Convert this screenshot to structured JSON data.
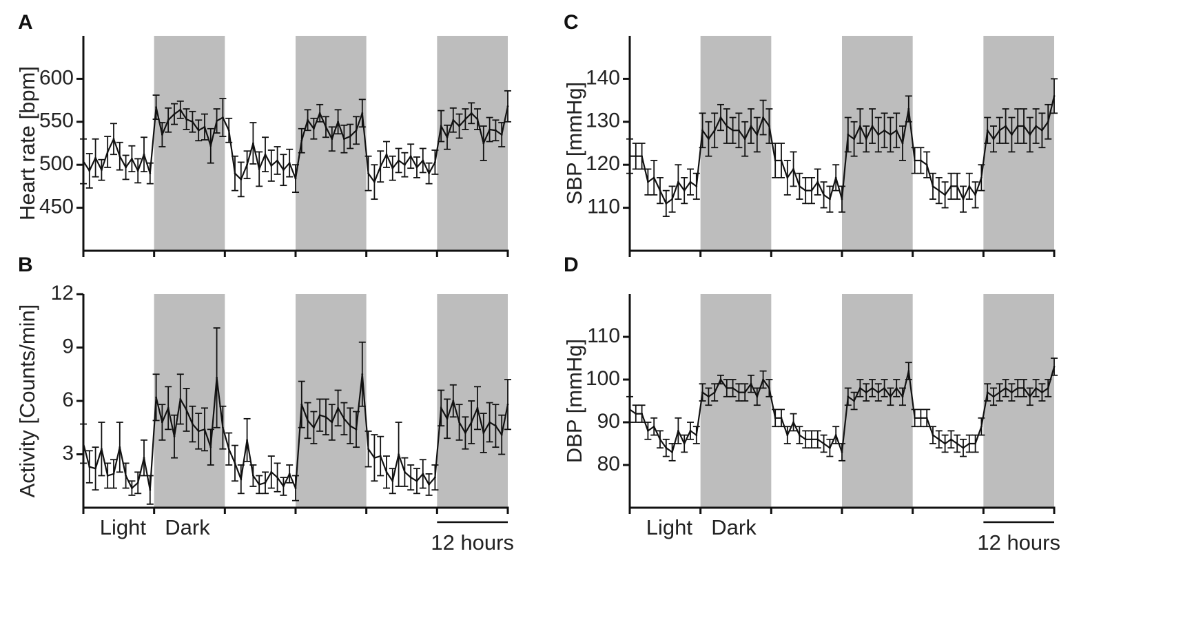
{
  "chart_data": [
    {
      "panel": "A",
      "type": "line",
      "ylabel": "Heart rate [bpm]",
      "yticks": [
        450,
        500,
        550,
        600
      ],
      "ylim": [
        400,
        650
      ],
      "x_unit": "hours",
      "xlim": [
        0,
        72
      ],
      "xtick_hours": [
        0,
        12,
        24,
        36,
        48,
        60,
        72
      ],
      "dark_periods": [
        [
          12,
          24
        ],
        [
          36,
          48
        ],
        [
          60,
          72
        ]
      ],
      "period_labels": {
        "light": "Light",
        "dark": "Dark"
      },
      "scale_bar": {
        "from": 60,
        "to": 72,
        "label": "12 hours"
      },
      "series": [
        {
          "name": "Heart rate",
          "values": [
            504,
            493,
            508,
            494,
            515,
            530,
            510,
            497,
            507,
            493,
            512,
            490,
            567,
            535,
            552,
            559,
            564,
            553,
            550,
            540,
            544,
            522,
            551,
            555,
            540,
            490,
            483,
            500,
            525,
            495,
            512,
            499,
            505,
            494,
            502,
            484,
            528,
            552,
            542,
            560,
            544,
            530,
            550,
            530,
            533,
            540,
            560,
            490,
            480,
            498,
            512,
            496,
            505,
            500,
            510,
            497,
            505,
            490,
            503,
            545,
            532,
            552,
            545,
            553,
            560,
            553,
            525,
            541,
            540,
            535,
            568
          ],
          "errors": [
            26,
            20,
            22,
            12,
            18,
            18,
            16,
            14,
            15,
            14,
            20,
            12,
            14,
            14,
            14,
            12,
            10,
            12,
            12,
            12,
            15,
            20,
            14,
            22,
            14,
            20,
            20,
            16,
            24,
            20,
            20,
            18,
            16,
            18,
            16,
            16,
            14,
            12,
            12,
            10,
            12,
            14,
            14,
            16,
            14,
            16,
            16,
            20,
            20,
            18,
            15,
            14,
            14,
            14,
            14,
            12,
            14,
            12,
            14,
            18,
            14,
            14,
            14,
            12,
            12,
            12,
            20,
            14,
            12,
            14,
            18
          ]
        }
      ]
    },
    {
      "panel": "B",
      "type": "line",
      "ylabel": "Activity [Counts/min]",
      "yticks": [
        3,
        6,
        9,
        12
      ],
      "ylim": [
        0,
        12
      ],
      "x_unit": "hours",
      "xlim": [
        0,
        72
      ],
      "xtick_hours": [
        0,
        12,
        24,
        36,
        48,
        60,
        72
      ],
      "dark_periods": [
        [
          12,
          24
        ],
        [
          36,
          48
        ],
        [
          60,
          72
        ]
      ],
      "period_labels": {
        "light": "Light",
        "dark": "Dark"
      },
      "scale_bar": {
        "from": 60,
        "to": 72,
        "label": "12 hours"
      },
      "series": [
        {
          "name": "Activity",
          "values": [
            3.6,
            2.3,
            2.2,
            3.3,
            1.8,
            1.9,
            3.4,
            1.8,
            1.1,
            1.4,
            2.8,
            1.0,
            6.2,
            4.8,
            5.6,
            4.0,
            6.1,
            5.5,
            4.7,
            4.3,
            4.4,
            3.4,
            7.3,
            4.5,
            3.3,
            2.5,
            1.6,
            3.8,
            1.8,
            1.3,
            1.4,
            2.0,
            1.7,
            1.2,
            1.9,
            1.1,
            5.8,
            4.9,
            4.5,
            5.2,
            5.1,
            4.8,
            5.6,
            5.0,
            4.6,
            4.4,
            7.5,
            3.3,
            2.8,
            2.9,
            2.0,
            1.5,
            3.0,
            2.0,
            1.7,
            1.5,
            1.9,
            1.3,
            1.7,
            5.6,
            5.0,
            6.0,
            4.8,
            4.2,
            4.8,
            5.6,
            4.2,
            4.8,
            4.6,
            4.1,
            5.8
          ],
          "errors": [
            1.1,
            0.9,
            1.2,
            1.5,
            0.7,
            0.8,
            1.4,
            0.7,
            0.4,
            0.6,
            1.0,
            0.8,
            1.3,
            1.0,
            1.2,
            1.2,
            1.4,
            1.2,
            1.0,
            1.0,
            1.2,
            1.0,
            2.8,
            1.2,
            0.9,
            1.0,
            0.8,
            1.2,
            0.6,
            0.5,
            0.6,
            0.9,
            0.8,
            0.5,
            0.5,
            0.7,
            1.3,
            1.0,
            0.9,
            0.9,
            1.0,
            1.0,
            1.0,
            0.9,
            1.0,
            1.0,
            1.8,
            1.0,
            1.3,
            1.1,
            0.9,
            0.7,
            1.8,
            0.8,
            0.7,
            0.7,
            0.8,
            0.6,
            0.7,
            1.0,
            1.1,
            0.9,
            1.0,
            0.9,
            1.2,
            1.2,
            1.1,
            1.1,
            1.2,
            1.1,
            1.4
          ]
        }
      ]
    },
    {
      "panel": "C",
      "type": "line",
      "ylabel": "SBP [mmHg]",
      "yticks": [
        110,
        120,
        130,
        140
      ],
      "ylim": [
        100,
        150
      ],
      "x_unit": "hours",
      "xlim": [
        0,
        72
      ],
      "xtick_hours": [
        0,
        12,
        24,
        36,
        48,
        60,
        72
      ],
      "dark_periods": [
        [
          12,
          24
        ],
        [
          36,
          48
        ],
        [
          60,
          72
        ]
      ],
      "period_labels": {
        "light": "Light",
        "dark": "Dark"
      },
      "scale_bar": {
        "from": 60,
        "to": 72,
        "label": "12 hours"
      },
      "series": [
        {
          "name": "SBP",
          "values": [
            122,
            122,
            122,
            116,
            117,
            114,
            111,
            112,
            116,
            114,
            116,
            115,
            128,
            126,
            128,
            131,
            129,
            128,
            128,
            126,
            129,
            127,
            131,
            129,
            121,
            121,
            117,
            119,
            115,
            114,
            114,
            116,
            113,
            112,
            117,
            112,
            127,
            126,
            129,
            126,
            129,
            127,
            128,
            127,
            128,
            125,
            133,
            121,
            121,
            120,
            115,
            114,
            113,
            115,
            115,
            112,
            115,
            113,
            117,
            128,
            126,
            128,
            129,
            127,
            129,
            129,
            127,
            129,
            128,
            130,
            136
          ],
          "errors": [
            4,
            3,
            3,
            3,
            4,
            3,
            3,
            3,
            4,
            3,
            3,
            3,
            4,
            4,
            4,
            3,
            4,
            3,
            4,
            4,
            4,
            4,
            4,
            4,
            4,
            4,
            4,
            4,
            3,
            3,
            3,
            3,
            3,
            3,
            3,
            3,
            4,
            4,
            4,
            3,
            4,
            4,
            4,
            4,
            4,
            4,
            3,
            3,
            3,
            3,
            3,
            3,
            3,
            3,
            3,
            3,
            3,
            3,
            3,
            3,
            3,
            3,
            4,
            4,
            4,
            4,
            4,
            4,
            4,
            4,
            4
          ]
        }
      ]
    },
    {
      "panel": "D",
      "type": "line",
      "ylabel": "DBP [mmHg]",
      "yticks": [
        80,
        90,
        100,
        110
      ],
      "ylim": [
        70,
        120
      ],
      "x_unit": "hours",
      "xlim": [
        0,
        72
      ],
      "xtick_hours": [
        0,
        12,
        24,
        36,
        48,
        60,
        72
      ],
      "dark_periods": [
        [
          12,
          24
        ],
        [
          36,
          48
        ],
        [
          60,
          72
        ]
      ],
      "period_labels": {
        "light": "Light",
        "dark": "Dark"
      },
      "scale_bar": {
        "from": 60,
        "to": 72,
        "label": "12 hours"
      },
      "series": [
        {
          "name": "DBP",
          "values": [
            93,
            92,
            92,
            88,
            89,
            86,
            84,
            83,
            88,
            85,
            88,
            87,
            97,
            96,
            97,
            100,
            98,
            98,
            97,
            97,
            99,
            96,
            100,
            98,
            91,
            91,
            87,
            90,
            87,
            86,
            86,
            86,
            85,
            84,
            87,
            83,
            96,
            95,
            98,
            97,
            98,
            97,
            98,
            96,
            98,
            96,
            102,
            91,
            91,
            91,
            87,
            86,
            85,
            86,
            85,
            84,
            85,
            85,
            89,
            97,
            96,
            97,
            98,
            97,
            98,
            98,
            96,
            98,
            97,
            98,
            103
          ],
          "errors": [
            3,
            2,
            2,
            2,
            2,
            2,
            2,
            2,
            3,
            2,
            2,
            2,
            2,
            2,
            2,
            1,
            2,
            2,
            2,
            2,
            2,
            2,
            2,
            2,
            2,
            2,
            2,
            2,
            2,
            2,
            2,
            2,
            2,
            2,
            2,
            2,
            2,
            2,
            2,
            2,
            2,
            2,
            2,
            2,
            2,
            2,
            2,
            2,
            2,
            2,
            2,
            2,
            2,
            2,
            2,
            2,
            2,
            2,
            2,
            2,
            2,
            2,
            2,
            2,
            2,
            2,
            2,
            2,
            2,
            2,
            2
          ]
        }
      ]
    }
  ]
}
